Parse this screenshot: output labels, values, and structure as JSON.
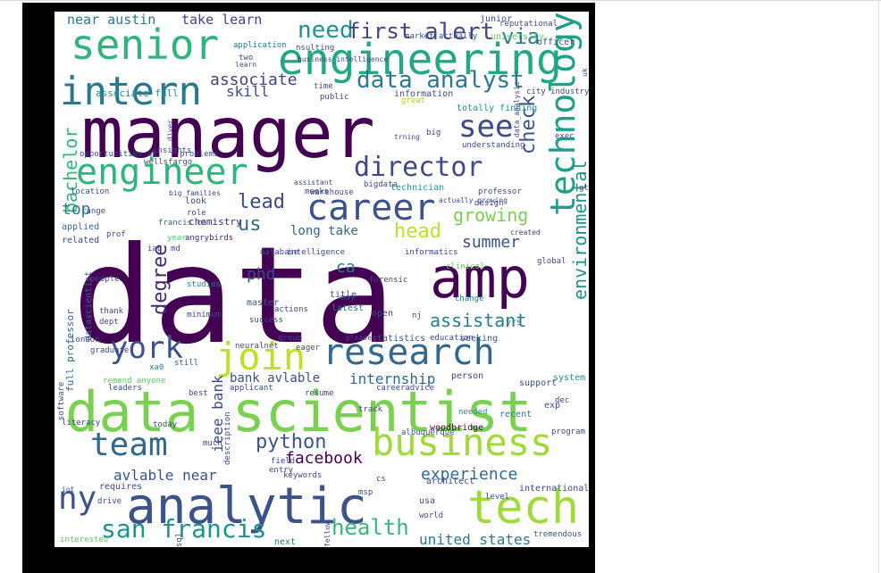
{
  "wordcloud": {
    "words": [
      {
        "text": "data",
        "color": "#440154"
      },
      {
        "text": "manager",
        "color": "#440154"
      },
      {
        "text": "data scientist",
        "color": "#7ad151"
      },
      {
        "text": "analytic",
        "color": "#3b528b"
      },
      {
        "text": "engineering",
        "color": "#22a884"
      },
      {
        "text": "amp",
        "color": "#440154"
      },
      {
        "text": "tech",
        "color": "#a0da39"
      },
      {
        "text": "senior",
        "color": "#2fb47c"
      },
      {
        "text": "intern",
        "color": "#2a788e"
      },
      {
        "text": "engineer",
        "color": "#2fb47c"
      },
      {
        "text": "business",
        "color": "#a0da39"
      },
      {
        "text": "career",
        "color": "#3b528b"
      },
      {
        "text": "research",
        "color": "#31688e"
      },
      {
        "text": "technology",
        "color": "#1f9e89"
      },
      {
        "text": "team",
        "color": "#31688e"
      },
      {
        "text": "ny",
        "color": "#3b528b"
      },
      {
        "text": "director",
        "color": "#3e4989"
      },
      {
        "text": "join",
        "color": "#bddf26"
      },
      {
        "text": "york",
        "color": "#3b528b"
      },
      {
        "text": "see",
        "color": "#3e4989"
      },
      {
        "text": "data analyst",
        "color": "#2a788e"
      },
      {
        "text": "need",
        "color": "#21918c"
      },
      {
        "text": "first",
        "color": "#414487"
      },
      {
        "text": "alert",
        "color": "#3e4989"
      },
      {
        "text": "via",
        "color": "#2a788e"
      },
      {
        "text": "san francis",
        "color": "#21918c"
      },
      {
        "text": "health",
        "color": "#35b779"
      },
      {
        "text": "python",
        "color": "#3b528b"
      },
      {
        "text": "facebook",
        "color": "#440154"
      },
      {
        "text": "experience",
        "color": "#31688e"
      },
      {
        "text": "assistant",
        "color": "#287c8e"
      },
      {
        "text": "us",
        "color": "#31688e"
      },
      {
        "text": "lead",
        "color": "#3e4989"
      },
      {
        "text": "growing",
        "color": "#7ad151"
      },
      {
        "text": "head",
        "color": "#bddf26"
      },
      {
        "text": "summer",
        "color": "#3b528b"
      },
      {
        "text": "associate",
        "color": "#414487"
      },
      {
        "text": "united states",
        "color": "#2a788e"
      },
      {
        "text": "environmental",
        "color": "#21918c"
      },
      {
        "text": "check",
        "color": "#3b528b"
      },
      {
        "text": "bachelor",
        "color": "#35b779"
      },
      {
        "text": "degree",
        "color": "#482878"
      },
      {
        "text": "phd",
        "color": "#3e4989"
      },
      {
        "text": "internship",
        "color": "#31688e"
      },
      {
        "text": "ieee bank",
        "color": "#3e4989"
      },
      {
        "text": "bank avlable",
        "color": "#3b528b"
      },
      {
        "text": "avlable near",
        "color": "#3b528b"
      },
      {
        "text": "take learn",
        "color": "#414487"
      },
      {
        "text": "near austin",
        "color": "#2a788e"
      },
      {
        "text": "long take",
        "color": "#31688e"
      },
      {
        "text": "skill",
        "color": "#3e4989"
      },
      {
        "text": "top",
        "color": "#2a788e"
      },
      {
        "text": "ca",
        "color": "#2a788e"
      },
      {
        "text": "full professor",
        "color": "#31688e"
      },
      {
        "text": "datascientist",
        "color": "#31688e"
      },
      {
        "text": "associate full",
        "color": "#21918c"
      },
      {
        "text": "opportunities uk",
        "color": "#3e4989"
      },
      {
        "text": "chemistry",
        "color": "#482878"
      },
      {
        "text": "francis ca",
        "color": "#31688e"
      },
      {
        "text": "applied",
        "color": "#31688e"
      },
      {
        "text": "related",
        "color": "#3e4989"
      },
      {
        "text": "year",
        "color": "#5ec962"
      },
      {
        "text": "angrybirds",
        "color": "#482878"
      },
      {
        "text": "database",
        "color": "#3e4989"
      },
      {
        "text": "intelligence",
        "color": "#3e4989"
      },
      {
        "text": "informatics",
        "color": "#3e4989"
      },
      {
        "text": "created",
        "color": "#3e4989"
      },
      {
        "text": "people",
        "color": "#3e4989"
      },
      {
        "text": "studies",
        "color": "#2a788e"
      },
      {
        "text": "master",
        "color": "#3b528b"
      },
      {
        "text": "title",
        "color": "#3b528b"
      },
      {
        "text": "latest",
        "color": "#2a788e"
      },
      {
        "text": "change",
        "color": "#2a788e"
      },
      {
        "text": "open",
        "color": "#3e4989"
      },
      {
        "text": "yrs",
        "color": "#2a788e"
      },
      {
        "text": "statistics",
        "color": "#3b528b"
      },
      {
        "text": "education",
        "color": "#3e4989"
      },
      {
        "text": "seeking",
        "color": "#3b528b"
      },
      {
        "text": "graduate",
        "color": "#3e4989"
      },
      {
        "text": "xa0",
        "color": "#2a788e"
      },
      {
        "text": "still",
        "color": "#3b528b"
      },
      {
        "text": "remend anyone",
        "color": "#5ec962"
      },
      {
        "text": "leaders",
        "color": "#3e4989"
      },
      {
        "text": "applicant",
        "color": "#3e4989"
      },
      {
        "text": "person",
        "color": "#3e4989"
      },
      {
        "text": "support",
        "color": "#3b528b"
      },
      {
        "text": "system",
        "color": "#21918c"
      },
      {
        "text": "careeradvice",
        "color": "#3e4989"
      },
      {
        "text": "needed",
        "color": "#21918c"
      },
      {
        "text": "recent",
        "color": "#2a788e"
      },
      {
        "text": "exp",
        "color": "#3e4989"
      },
      {
        "text": "literacy",
        "color": "#3e4989"
      },
      {
        "text": "today",
        "color": "#3e4989"
      },
      {
        "text": "description",
        "color": "#3e4989"
      },
      {
        "text": "woodbridge",
        "color": "#440154"
      },
      {
        "text": "albuquerque",
        "color": "#3b528b"
      },
      {
        "text": "program",
        "color": "#3e4989"
      },
      {
        "text": "field",
        "color": "#3e4989"
      },
      {
        "text": "entry",
        "color": "#3e4989"
      },
      {
        "text": "architect",
        "color": "#3e4989"
      },
      {
        "text": "level",
        "color": "#3e4989"
      },
      {
        "text": "international",
        "color": "#3e4989"
      },
      {
        "text": "usa",
        "color": "#3e4989"
      },
      {
        "text": "world",
        "color": "#3e4989"
      },
      {
        "text": "requires",
        "color": "#3e4989"
      },
      {
        "text": "interested",
        "color": "#5ec962"
      },
      {
        "text": "next",
        "color": "#2a788e"
      },
      {
        "text": "fellow",
        "color": "#3e4989"
      },
      {
        "text": "tremendous",
        "color": "#3b528b"
      },
      {
        "text": "junior",
        "color": "#3e4989"
      },
      {
        "text": "university",
        "color": "#5ec962"
      },
      {
        "text": "officer",
        "color": "#3e4989"
      },
      {
        "text": "market actually",
        "color": "#3e4989"
      },
      {
        "text": "application",
        "color": "#2a788e"
      },
      {
        "text": "two",
        "color": "#3e4989"
      },
      {
        "text": "learn",
        "color": "#3e4989"
      },
      {
        "text": "time",
        "color": "#3e4989"
      },
      {
        "text": "public",
        "color": "#3e4989"
      },
      {
        "text": "information",
        "color": "#3e4989"
      },
      {
        "text": "totally finding",
        "color": "#21918c"
      },
      {
        "text": "city industry",
        "color": "#3e4989"
      },
      {
        "text": "great",
        "color": "#a0da39"
      },
      {
        "text": "big",
        "color": "#3e4989"
      },
      {
        "text": "understanding",
        "color": "#3e4989"
      },
      {
        "text": "trning",
        "color": "#3e4989"
      },
      {
        "text": "meeks",
        "color": "#3e4989"
      },
      {
        "text": "bigdata",
        "color": "#3e4989"
      },
      {
        "text": "technician",
        "color": "#21918c"
      },
      {
        "text": "professor",
        "color": "#3e4989"
      },
      {
        "text": "design",
        "color": "#3e4989"
      },
      {
        "text": "look",
        "color": "#3e4989"
      },
      {
        "text": "role",
        "color": "#3e4989"
      },
      {
        "text": "range",
        "color": "#3e4989"
      },
      {
        "text": "prof",
        "color": "#3e4989"
      },
      {
        "text": "global",
        "color": "#3e4989"
      },
      {
        "text": "forensic",
        "color": "#3e4989"
      },
      {
        "text": "clinical",
        "color": "#5ec962"
      },
      {
        "text": "may",
        "color": "#3e4989"
      },
      {
        "text": "actions",
        "color": "#3e4989"
      },
      {
        "text": "success",
        "color": "#3e4989"
      },
      {
        "text": "please",
        "color": "#3e4989"
      },
      {
        "text": "minimum",
        "color": "#3e4989"
      },
      {
        "text": "thank",
        "color": "#3e4989"
      },
      {
        "text": "dept",
        "color": "#3e4989"
      },
      {
        "text": "london",
        "color": "#3e4989"
      },
      {
        "text": "neuralnet",
        "color": "#3e4989"
      },
      {
        "text": "eager",
        "color": "#3e4989"
      },
      {
        "text": "group",
        "color": "#3e4989"
      },
      {
        "text": "location",
        "color": "#3e4989"
      },
      {
        "text": "gt",
        "color": "#3e4989"
      },
      {
        "text": "iab",
        "color": "#3e4989"
      },
      {
        "text": "software",
        "color": "#3e4989"
      },
      {
        "text": "drive",
        "color": "#3e4989"
      },
      {
        "text": "much",
        "color": "#3e4989"
      },
      {
        "text": "resume",
        "color": "#3e4989"
      },
      {
        "text": "track",
        "color": "#3e4989"
      },
      {
        "text": "keywords",
        "color": "#3e4989"
      },
      {
        "text": "msp",
        "color": "#3e4989"
      },
      {
        "text": "sql",
        "color": "#3e4989"
      },
      {
        "text": "best",
        "color": "#3e4989"
      },
      {
        "text": "nsulting",
        "color": "#3e4989"
      },
      {
        "text": "assistant",
        "color": "#3e4989"
      },
      {
        "text": "warehouse",
        "color": "#3e4989"
      },
      {
        "text": "diver",
        "color": "#3e4989"
      },
      {
        "text": "wellsfargo",
        "color": "#3e4989"
      },
      {
        "text": "problems",
        "color": "#3e4989"
      },
      {
        "text": "insights",
        "color": "#3e4989"
      },
      {
        "text": "md",
        "color": "#3e4989"
      },
      {
        "text": "nj",
        "color": "#3e4989"
      },
      {
        "text": "iot",
        "color": "#3e4989"
      },
      {
        "text": "data_analysis",
        "color": "#3e4989"
      },
      {
        "text": "actually growing",
        "color": "#3e4989"
      },
      {
        "text": "reputational",
        "color": "#3e4989"
      },
      {
        "text": "big_families",
        "color": "#3e4989"
      },
      {
        "text": "business_intelligence",
        "color": "#3e4989"
      },
      {
        "text": "uk",
        "color": "#3e4989"
      },
      {
        "text": "exec",
        "color": "#3e4989"
      },
      {
        "text": "dec",
        "color": "#3e4989"
      },
      {
        "text": "cs",
        "color": "#3e4989"
      }
    ]
  }
}
